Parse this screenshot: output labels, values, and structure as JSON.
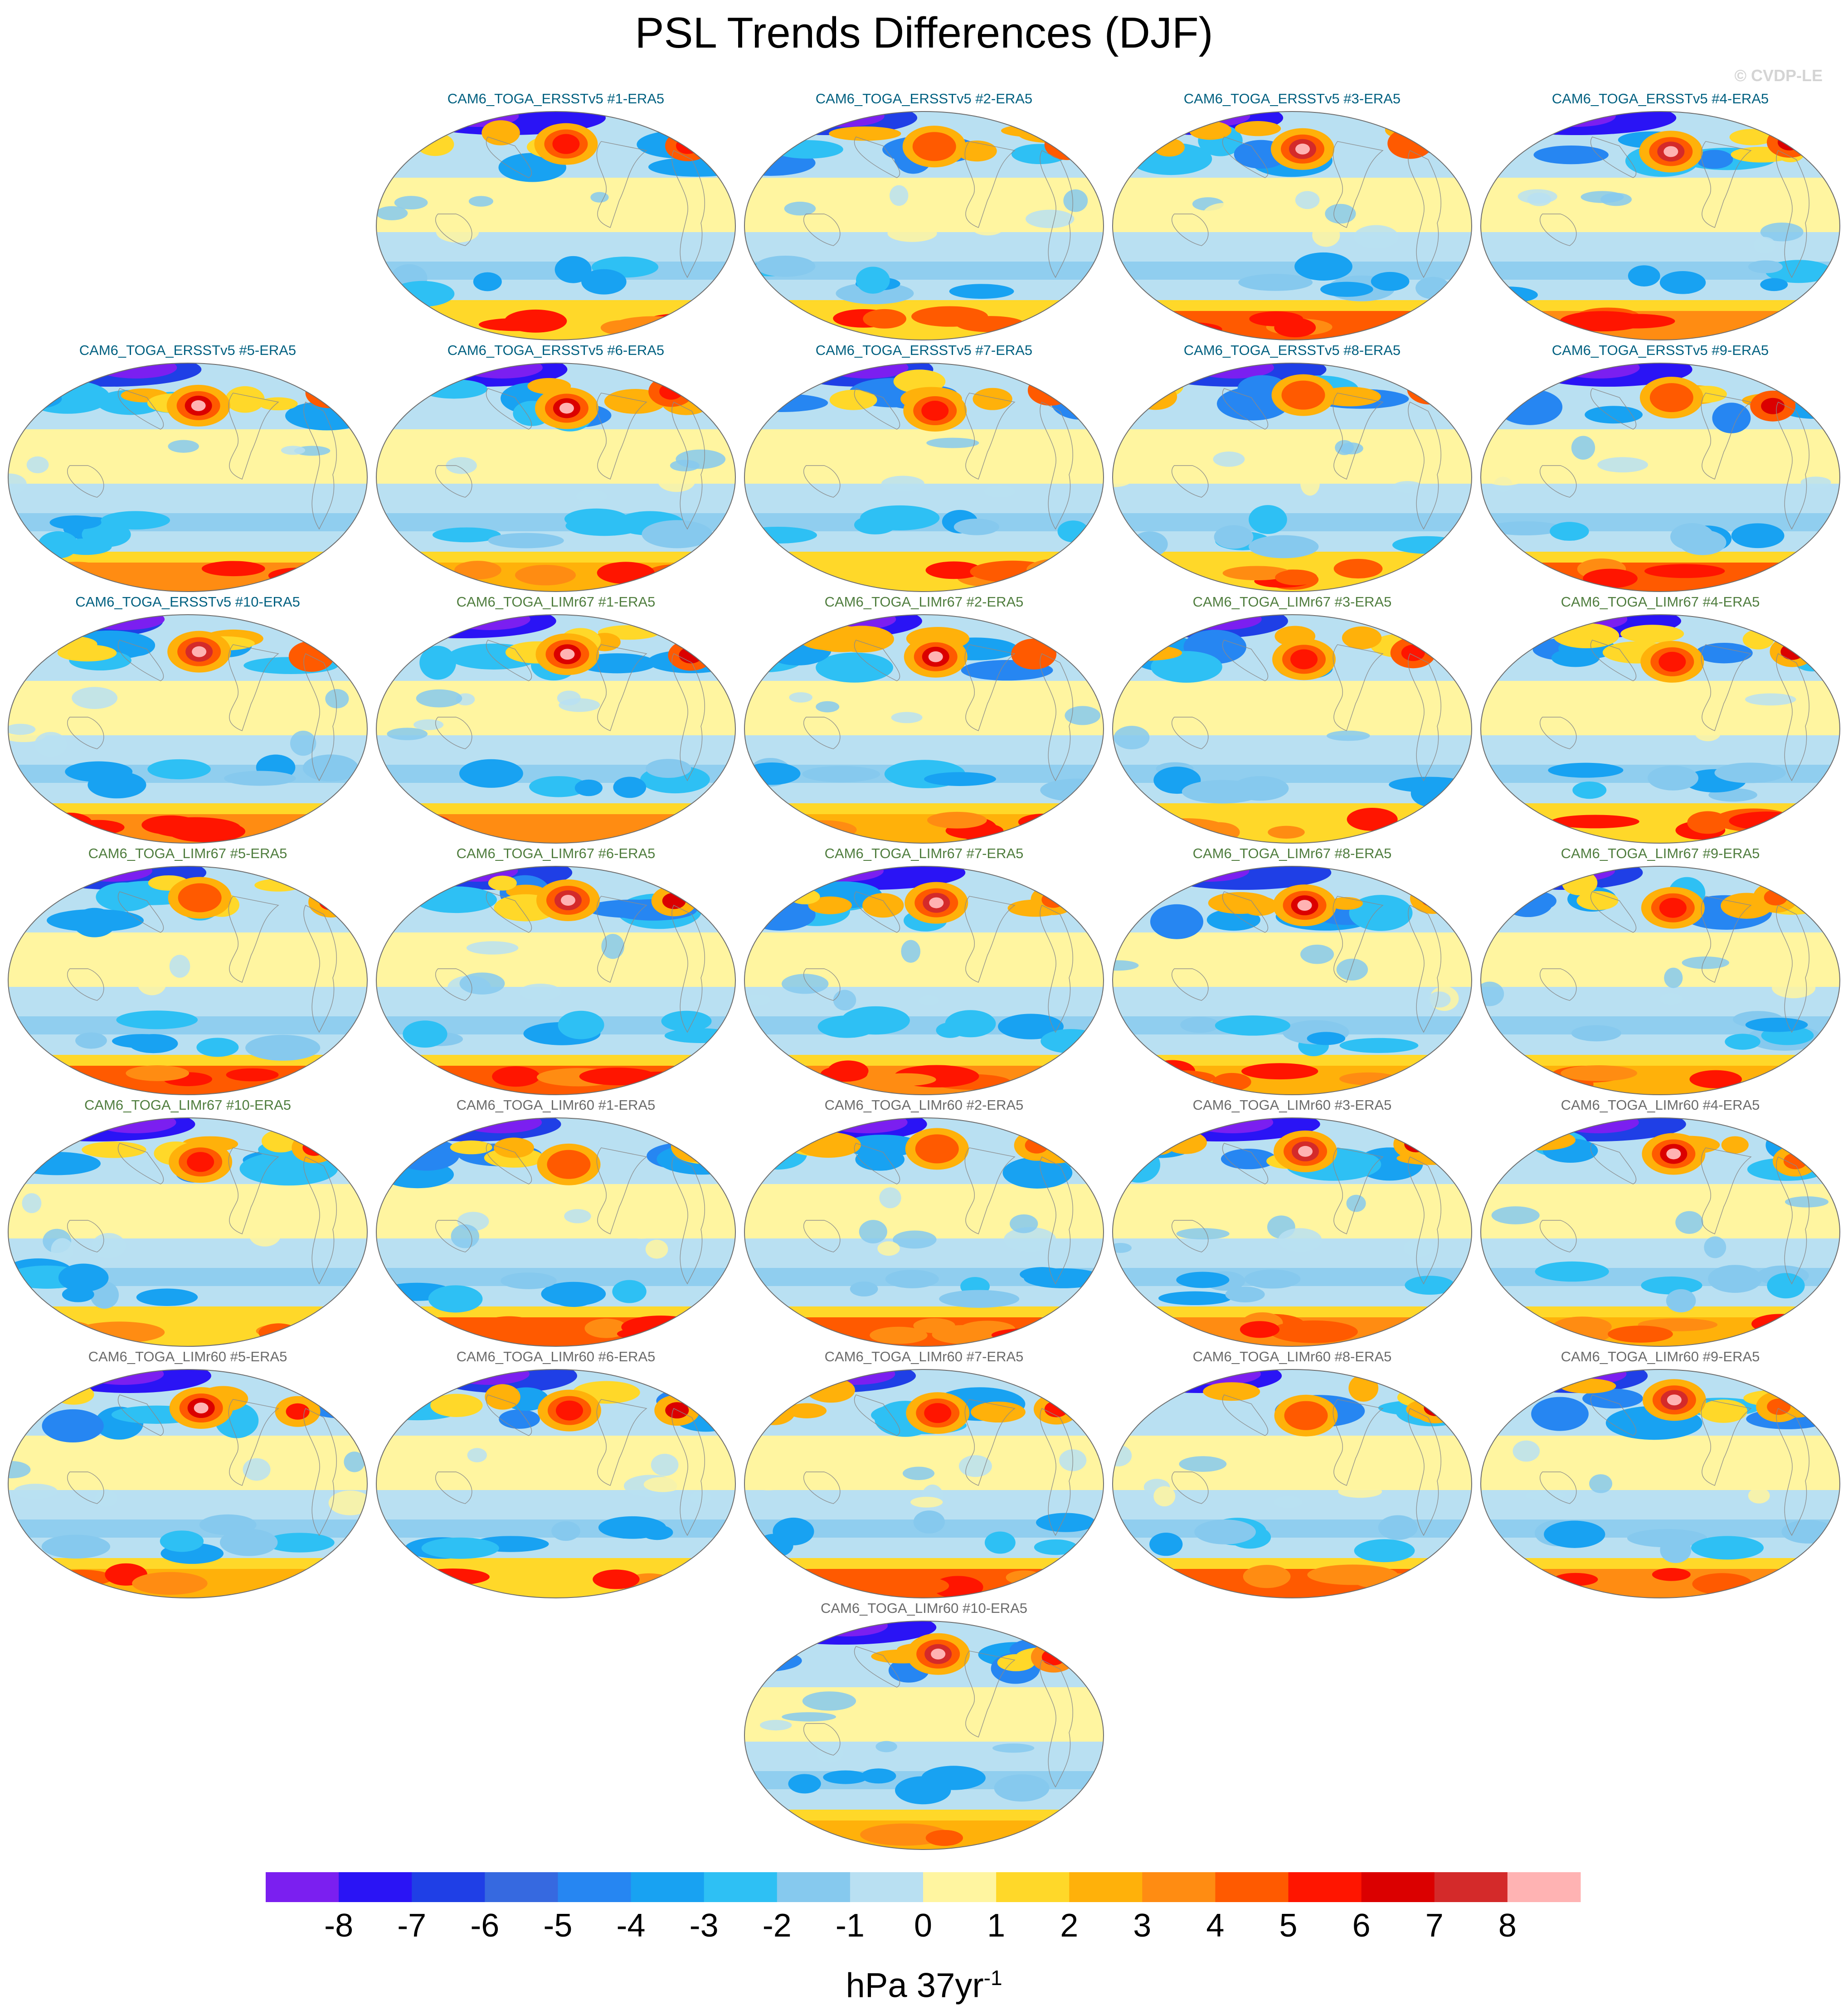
{
  "title": "PSL Trends Differences (DJF)",
  "watermark": "© CVDP-LE",
  "colorbar": {
    "tick_labels": [
      "-8",
      "-7",
      "-6",
      "-5",
      "-4",
      "-3",
      "-2",
      "-1",
      "0",
      "1",
      "2",
      "3",
      "4",
      "5",
      "6",
      "7",
      "8"
    ],
    "colors": [
      "#7b1ff0",
      "#2a14f5",
      "#1f3fe6",
      "#3669e0",
      "#2686f2",
      "#18a2f2",
      "#2ec0f4",
      "#86c9ee",
      "#b9e0f2",
      "#fff5a0",
      "#ffd829",
      "#ffb10a",
      "#ff8c12",
      "#ff5a00",
      "#ff1500",
      "#db0000",
      "#d42a2a",
      "#ffb3b3"
    ],
    "units_base": "hPa 37yr",
    "units_exp": "-1"
  },
  "panel_groups": {
    "ERSSTv5": {
      "title_color": "#006080"
    },
    "LIMr67": {
      "title_color": "#4f7d3e"
    },
    "LIMr60": {
      "title_color": "#6b6b6b"
    }
  },
  "panels": [
    {
      "title": "CAM6_TOGA_ERSSTv5 #1-ERA5",
      "group": "ERSSTv5"
    },
    {
      "title": "CAM6_TOGA_ERSSTv5 #2-ERA5",
      "group": "ERSSTv5"
    },
    {
      "title": "CAM6_TOGA_ERSSTv5 #3-ERA5",
      "group": "ERSSTv5"
    },
    {
      "title": "CAM6_TOGA_ERSSTv5 #4-ERA5",
      "group": "ERSSTv5"
    },
    {
      "title": "CAM6_TOGA_ERSSTv5 #5-ERA5",
      "group": "ERSSTv5"
    },
    {
      "title": "CAM6_TOGA_ERSSTv5 #6-ERA5",
      "group": "ERSSTv5"
    },
    {
      "title": "CAM6_TOGA_ERSSTv5 #7-ERA5",
      "group": "ERSSTv5"
    },
    {
      "title": "CAM6_TOGA_ERSSTv5 #8-ERA5",
      "group": "ERSSTv5"
    },
    {
      "title": "CAM6_TOGA_ERSSTv5 #9-ERA5",
      "group": "ERSSTv5"
    },
    {
      "title": "CAM6_TOGA_ERSSTv5 #10-ERA5",
      "group": "ERSSTv5"
    },
    {
      "title": "CAM6_TOGA_LIMr67 #1-ERA5",
      "group": "LIMr67"
    },
    {
      "title": "CAM6_TOGA_LIMr67 #2-ERA5",
      "group": "LIMr67"
    },
    {
      "title": "CAM6_TOGA_LIMr67 #3-ERA5",
      "group": "LIMr67"
    },
    {
      "title": "CAM6_TOGA_LIMr67 #4-ERA5",
      "group": "LIMr67"
    },
    {
      "title": "CAM6_TOGA_LIMr67 #5-ERA5",
      "group": "LIMr67"
    },
    {
      "title": "CAM6_TOGA_LIMr67 #6-ERA5",
      "group": "LIMr67"
    },
    {
      "title": "CAM6_TOGA_LIMr67 #7-ERA5",
      "group": "LIMr67"
    },
    {
      "title": "CAM6_TOGA_LIMr67 #8-ERA5",
      "group": "LIMr67"
    },
    {
      "title": "CAM6_TOGA_LIMr67 #9-ERA5",
      "group": "LIMr67"
    },
    {
      "title": "CAM6_TOGA_LIMr67 #10-ERA5",
      "group": "LIMr67"
    },
    {
      "title": "CAM6_TOGA_LIMr60 #1-ERA5",
      "group": "LIMr60"
    },
    {
      "title": "CAM6_TOGA_LIMr60 #2-ERA5",
      "group": "LIMr60"
    },
    {
      "title": "CAM6_TOGA_LIMr60 #3-ERA5",
      "group": "LIMr60"
    },
    {
      "title": "CAM6_TOGA_LIMr60 #4-ERA5",
      "group": "LIMr60"
    },
    {
      "title": "CAM6_TOGA_LIMr60 #5-ERA5",
      "group": "LIMr60"
    },
    {
      "title": "CAM6_TOGA_LIMr60 #6-ERA5",
      "group": "LIMr60"
    },
    {
      "title": "CAM6_TOGA_LIMr60 #7-ERA5",
      "group": "LIMr60"
    },
    {
      "title": "CAM6_TOGA_LIMr60 #8-ERA5",
      "group": "LIMr60"
    },
    {
      "title": "CAM6_TOGA_LIMr60 #9-ERA5",
      "group": "LIMr60"
    },
    {
      "title": "CAM6_TOGA_LIMr60 #10-ERA5",
      "group": "LIMr60"
    }
  ]
}
